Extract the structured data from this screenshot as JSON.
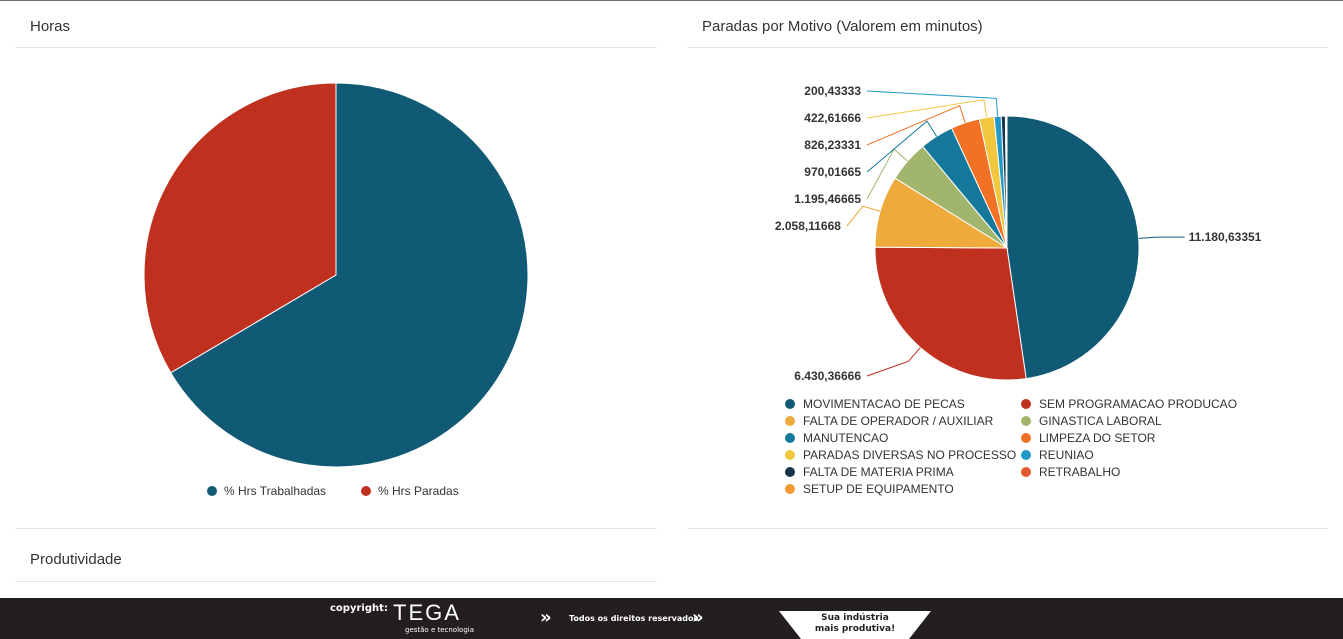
{
  "panels": {
    "hours_title": "Horas",
    "stops_title": "Paradas por Motivo (Valorem em minutos)",
    "productivity_title": "Produtividade"
  },
  "chart_data": [
    {
      "type": "pie",
      "title": "Horas",
      "slices": [
        {
          "name": "% Hrs Trabalhadas",
          "value": 66.5,
          "color": "#115a75"
        },
        {
          "name": "% Hrs Paradas",
          "value": 33.5,
          "color": "#c0301f"
        }
      ],
      "legend": "bottom"
    },
    {
      "type": "pie",
      "title": "Paradas por Motivo (Valorem em minutos)",
      "slices": [
        {
          "name": "MOVIMENTACAO DE PECAS",
          "value": 11180.63351,
          "label": "11.180,63351",
          "color": "#115a75"
        },
        {
          "name": "SEM PROGRAMACAO PRODUCAO",
          "value": 6430.36666,
          "label": "6.430,36666",
          "color": "#c0301f"
        },
        {
          "name": "FALTA DE OPERADOR / AUXILIAR",
          "value": 2058.11668,
          "label": "2.058,11668",
          "color": "#eeaa3b"
        },
        {
          "name": "GINASTICA LABORAL",
          "value": 1195.46665,
          "label": "1.195,46665",
          "color": "#a1b56c"
        },
        {
          "name": "MANUTENCAO",
          "value": 970.01665,
          "label": "970,01665",
          "color": "#14789a"
        },
        {
          "name": "LIMPEZA DO SETOR",
          "value": 826.23331,
          "label": "826,23331",
          "color": "#f27125"
        },
        {
          "name": "PARADAS DIVERSAS NO PROCESSO",
          "value": 422.61666,
          "label": "422,61666",
          "color": "#f1c73e"
        },
        {
          "name": "REUNIAO",
          "value": 200.43333,
          "label": "200,43333",
          "color": "#2199c7"
        },
        {
          "name": "FALTA DE MATERIA PRIMA",
          "value": 120,
          "label": "",
          "color": "#15364c"
        },
        {
          "name": "RETRABALHO",
          "value": 30,
          "label": "",
          "color": "#e45a2d"
        },
        {
          "name": "SETUP DE EQUIPAMENTO",
          "value": 15,
          "label": "",
          "color": "#f39a33"
        }
      ],
      "legend": "bottom"
    }
  ],
  "footer": {
    "copyright_label": "copyright:",
    "brand": "TEGA",
    "brand_sub": "gestão e tecnologia",
    "rights": "Todos os direitos reservados",
    "tagline_line1": "Sua indústria",
    "tagline_line2": "mais produtiva!"
  }
}
